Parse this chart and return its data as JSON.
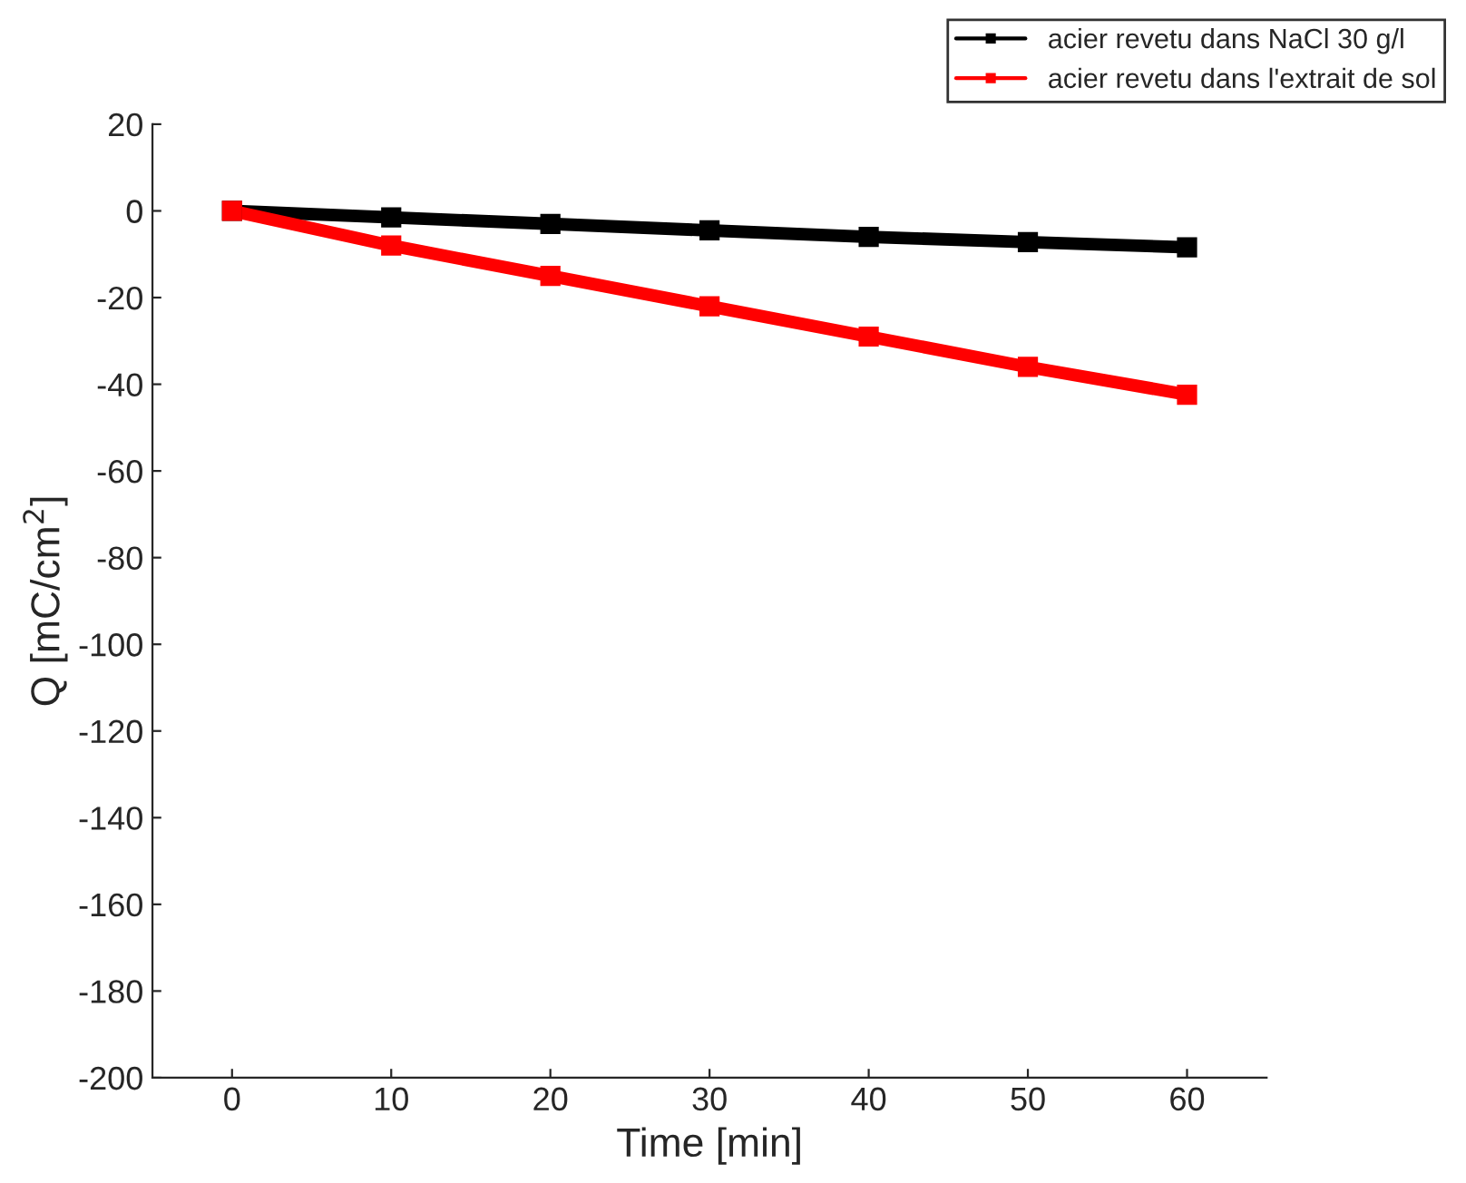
{
  "chart_data": {
    "type": "line",
    "xlabel": "Time [min]",
    "ylabel": "Q [mC/cm$^{2}$]",
    "x": [
      0,
      10,
      20,
      30,
      40,
      50,
      60
    ],
    "series": [
      {
        "name": "acier revetu dans NaCl 30 g/l",
        "color": "#000000",
        "values": [
          0,
          -1.5,
          -3,
          -4.5,
          -6,
          -7.2,
          -8.4
        ]
      },
      {
        "name": "acier revetu dans l'extrait de sol",
        "color": "#ff0000",
        "values": [
          0,
          -8,
          -15,
          -22,
          -29,
          -36,
          -42.4
        ]
      }
    ],
    "xlim": [
      -5,
      65
    ],
    "xticks": [
      0,
      10,
      20,
      30,
      40,
      50,
      60
    ],
    "ylim": [
      -200,
      20
    ],
    "yticks": [
      -200,
      -180,
      -160,
      -140,
      -120,
      -100,
      -80,
      -60,
      -40,
      -20,
      0,
      20
    ],
    "grid": false,
    "legend": "top right",
    "marker": "square",
    "line_style": "solid"
  }
}
